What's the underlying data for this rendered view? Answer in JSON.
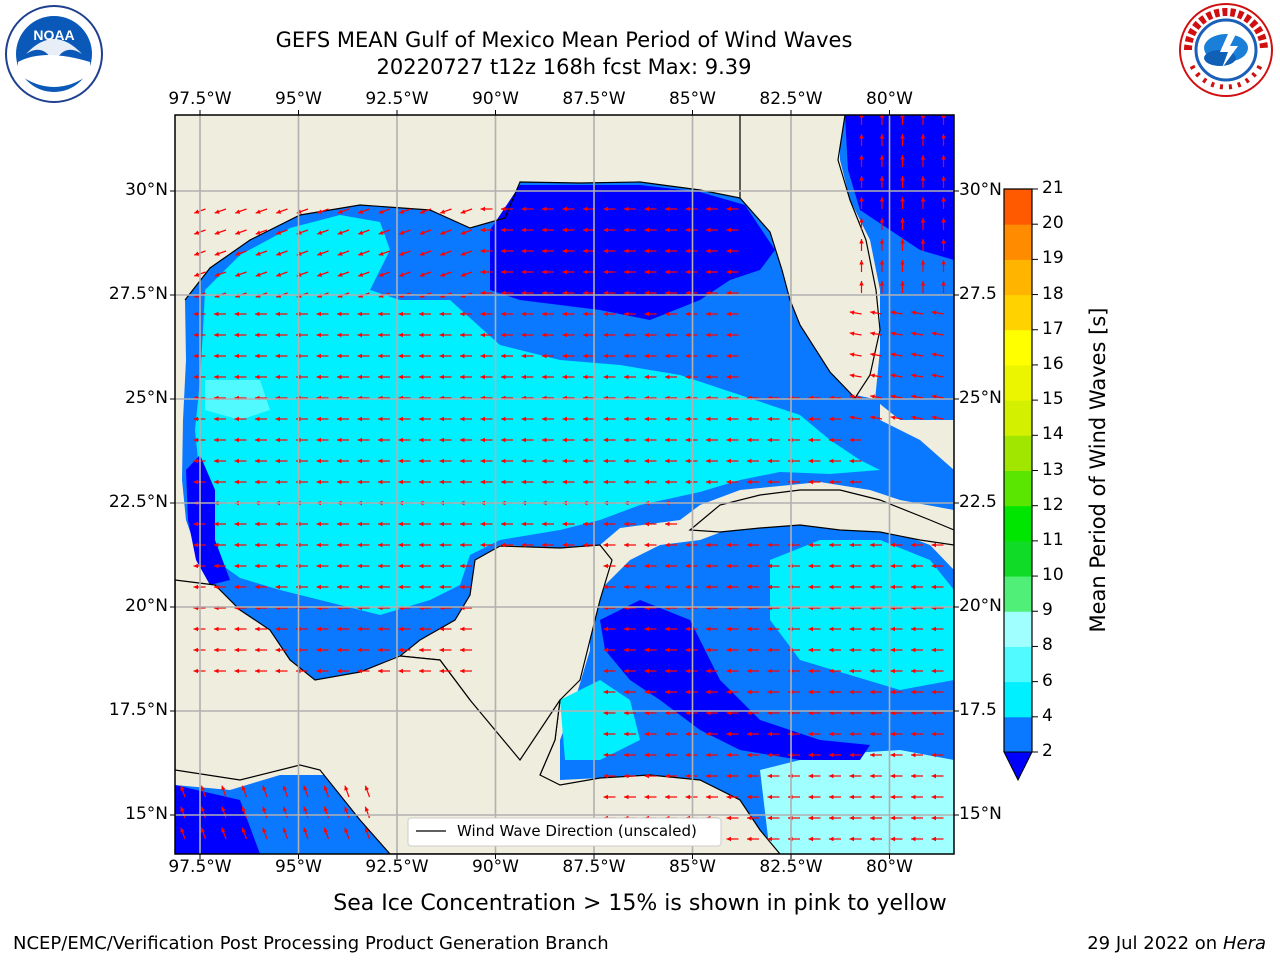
{
  "header": {
    "title_line1": "GEFS MEAN Gulf of Mexico Mean Period of Wind Waves",
    "title_line2": "20220727 t12z 168h fcst   Max: 9.39"
  },
  "logos": {
    "left_name": "NOAA",
    "right_name": "NATIONAL WEATHER SERVICE"
  },
  "map": {
    "lon_labels": [
      "97.5°W",
      "95°W",
      "92.5°W",
      "90°W",
      "87.5°W",
      "85°W",
      "82.5°W",
      "80°W"
    ],
    "lat_labels_left": [
      "30°N",
      "27.5°N",
      "25°N",
      "22.5°N",
      "20°N",
      "17.5°N",
      "15°N"
    ],
    "lat_labels_right": [
      "30°N",
      "27.5",
      "25°N",
      "22.5",
      "20°N",
      "17.5",
      "15°N"
    ],
    "legend_label": "Wind Wave Direction (unscaled)",
    "land_color": "#efedde",
    "arrow_color": "#ff0000"
  },
  "colorbar": {
    "title": "Mean Period of Wind Waves [s]",
    "ticks": [
      "2",
      "4",
      "6",
      "8",
      "9",
      "10",
      "11",
      "12",
      "13",
      "14",
      "15",
      "16",
      "17",
      "18",
      "19",
      "20",
      "21"
    ],
    "colors": [
      "#0a78ff",
      "#00f0ff",
      "#50faff",
      "#a0ffff",
      "#50f078",
      "#10dc28",
      "#00e600",
      "#5ae600",
      "#a0e600",
      "#d2f000",
      "#ebf500",
      "#ffff00",
      "#ffd200",
      "#ffb400",
      "#ff8c00",
      "#ff5a00",
      "#ff2800",
      "#ff0000"
    ],
    "under_color": "#0000ff"
  },
  "caption": "Sea Ice Concentration > 15% is shown in pink to yellow",
  "footer": {
    "left": "NCEP/EMC/Verification Post Processing Product Generation Branch",
    "right_date": "29 Jul 2022 on ",
    "right_host": "Hera"
  }
}
